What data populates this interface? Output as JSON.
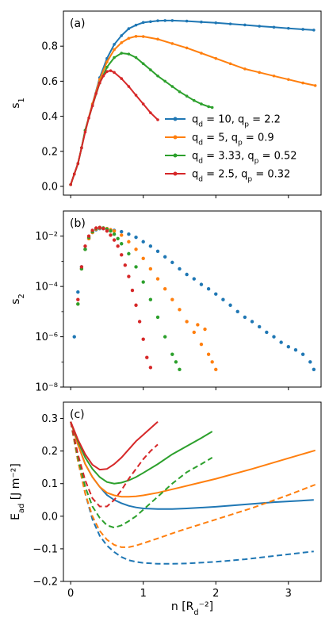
{
  "chart_data": [
    {
      "type": "line",
      "panel_label": "(a)",
      "ylabel": "s_1",
      "xlim": [
        -0.1,
        3.45
      ],
      "ylim": [
        -0.05,
        1.0
      ],
      "yticks": [
        {
          "value": 0.0,
          "label": "0.0"
        },
        {
          "value": 0.2,
          "label": "0.2"
        },
        {
          "value": 0.4,
          "label": "0.4"
        },
        {
          "value": 0.6,
          "label": "0.6"
        },
        {
          "value": 0.8,
          "label": "0.8"
        }
      ],
      "legend_position": "lower-right",
      "series": [
        {
          "name": "q_d = 10,  q_p = 2.2",
          "color": "#1f77b4",
          "marker": "dot",
          "x": [
            0.0,
            0.05,
            0.1,
            0.15,
            0.2,
            0.3,
            0.4,
            0.5,
            0.6,
            0.7,
            0.8,
            0.9,
            1.0,
            1.1,
            1.2,
            1.3,
            1.4,
            1.6,
            1.8,
            2.0,
            2.2,
            2.4,
            2.6,
            2.8,
            3.0,
            3.2,
            3.35
          ],
          "y": [
            0.01,
            0.07,
            0.13,
            0.22,
            0.32,
            0.47,
            0.62,
            0.73,
            0.81,
            0.86,
            0.9,
            0.92,
            0.935,
            0.94,
            0.945,
            0.946,
            0.946,
            0.943,
            0.938,
            0.933,
            0.927,
            0.921,
            0.914,
            0.908,
            0.902,
            0.896,
            0.892
          ]
        },
        {
          "name": "q_d = 5,  q_p = 0.9",
          "color": "#ff7f0e",
          "marker": "dot",
          "x": [
            0.0,
            0.05,
            0.1,
            0.15,
            0.2,
            0.3,
            0.4,
            0.5,
            0.6,
            0.7,
            0.8,
            0.9,
            1.0,
            1.2,
            1.4,
            1.6,
            1.8,
            2.0,
            2.2,
            2.4,
            2.6,
            2.8,
            3.0,
            3.2,
            3.37
          ],
          "y": [
            0.01,
            0.07,
            0.13,
            0.22,
            0.32,
            0.47,
            0.61,
            0.71,
            0.78,
            0.82,
            0.845,
            0.856,
            0.855,
            0.84,
            0.815,
            0.79,
            0.76,
            0.73,
            0.7,
            0.67,
            0.65,
            0.63,
            0.61,
            0.59,
            0.575
          ]
        },
        {
          "name": "q_d = 3.33,  q_p = 0.52",
          "color": "#2ca02c",
          "marker": "dot",
          "x": [
            0.0,
            0.05,
            0.1,
            0.15,
            0.2,
            0.3,
            0.4,
            0.5,
            0.6,
            0.7,
            0.8,
            0.9,
            1.0,
            1.1,
            1.2,
            1.3,
            1.4,
            1.5,
            1.6,
            1.7,
            1.8,
            1.9,
            1.95
          ],
          "y": [
            0.01,
            0.07,
            0.13,
            0.22,
            0.32,
            0.46,
            0.59,
            0.68,
            0.735,
            0.76,
            0.755,
            0.735,
            0.7,
            0.665,
            0.63,
            0.6,
            0.57,
            0.54,
            0.515,
            0.49,
            0.47,
            0.455,
            0.45
          ]
        },
        {
          "name": "q_d = 2.5,  q_p = 0.32",
          "color": "#d62728",
          "marker": "dot",
          "x": [
            0.0,
            0.05,
            0.1,
            0.15,
            0.2,
            0.25,
            0.3,
            0.35,
            0.4,
            0.45,
            0.5,
            0.55,
            0.6,
            0.7,
            0.8,
            0.9,
            1.0,
            1.1,
            1.2
          ],
          "y": [
            0.01,
            0.07,
            0.13,
            0.22,
            0.31,
            0.39,
            0.46,
            0.53,
            0.59,
            0.63,
            0.655,
            0.66,
            0.65,
            0.615,
            0.57,
            0.52,
            0.47,
            0.42,
            0.38
          ]
        }
      ]
    },
    {
      "type": "scatter",
      "panel_label": "(b)",
      "ylabel": "s_2",
      "yscale": "log",
      "xlim": [
        -0.1,
        3.45
      ],
      "ylim": [
        1e-08,
        0.1
      ],
      "yticks": [
        {
          "value": 1e-08,
          "label": "10⁻⁸"
        },
        {
          "value": 1e-06,
          "label": "10⁻⁶"
        },
        {
          "value": 0.0001,
          "label": "10⁻⁴"
        },
        {
          "value": 0.01,
          "label": "10⁻²"
        }
      ],
      "series": [
        {
          "name": "q_d = 10,  q_p = 2.2",
          "color": "#1f77b4",
          "x": [
            0.05,
            0.1,
            0.15,
            0.2,
            0.25,
            0.3,
            0.35,
            0.4,
            0.45,
            0.5,
            0.6,
            0.7,
            0.8,
            0.9,
            1.0,
            1.1,
            1.2,
            1.3,
            1.4,
            1.5,
            1.6,
            1.7,
            1.8,
            1.9,
            2.0,
            2.1,
            2.2,
            2.3,
            2.4,
            2.5,
            2.6,
            2.7,
            2.8,
            2.9,
            3.0,
            3.1,
            3.2,
            3.3,
            3.35
          ],
          "y": [
            1e-06,
            6e-05,
            0.0006,
            0.003,
            0.008,
            0.014,
            0.018,
            0.02,
            0.02,
            0.019,
            0.017,
            0.015,
            0.012,
            0.009,
            0.006,
            0.004,
            0.0025,
            0.0015,
            0.0009,
            0.0005,
            0.0003,
            0.0002,
            0.00012,
            8e-05,
            5e-05,
            3e-05,
            1.8e-05,
            1e-05,
            6e-06,
            4e-06,
            2.5e-06,
            1.5e-06,
            1e-06,
            6e-07,
            4e-07,
            3e-07,
            2e-07,
            1e-07,
            5e-08
          ]
        },
        {
          "name": "q_d = 5,  q_p = 0.9",
          "color": "#ff7f0e",
          "x": [
            0.1,
            0.15,
            0.2,
            0.25,
            0.3,
            0.35,
            0.4,
            0.45,
            0.5,
            0.55,
            0.6,
            0.7,
            0.8,
            0.9,
            1.0,
            1.1,
            1.2,
            1.3,
            1.4,
            1.5,
            1.6,
            1.7,
            1.75,
            1.8,
            1.85,
            1.9,
            1.95,
            2.0
          ],
          "y": [
            2e-05,
            0.0005,
            0.003,
            0.008,
            0.014,
            0.019,
            0.021,
            0.021,
            0.02,
            0.018,
            0.016,
            0.011,
            0.006,
            0.003,
            0.0013,
            0.0005,
            0.0002,
            8e-05,
            3e-05,
            1.2e-05,
            4e-06,
            1.5e-06,
            3e-06,
            5e-07,
            2e-06,
            2e-07,
            1e-07,
            5e-08
          ]
        },
        {
          "name": "q_d = 3.33,  q_p = 0.52",
          "color": "#2ca02c",
          "x": [
            0.1,
            0.15,
            0.2,
            0.25,
            0.3,
            0.35,
            0.4,
            0.45,
            0.5,
            0.55,
            0.6,
            0.65,
            0.7,
            0.8,
            0.9,
            1.0,
            1.1,
            1.2,
            1.3,
            1.4,
            1.45,
            1.5
          ],
          "y": [
            2e-05,
            0.0005,
            0.003,
            0.009,
            0.015,
            0.02,
            0.022,
            0.021,
            0.019,
            0.016,
            0.012,
            0.008,
            0.005,
            0.002,
            0.0006,
            0.00015,
            3e-05,
            6e-06,
            1e-06,
            2e-07,
            1e-07,
            5e-08
          ]
        },
        {
          "name": "q_d = 2.5,  q_p = 0.32",
          "color": "#d62728",
          "x": [
            0.1,
            0.15,
            0.2,
            0.25,
            0.3,
            0.35,
            0.4,
            0.45,
            0.5,
            0.55,
            0.6,
            0.65,
            0.7,
            0.75,
            0.8,
            0.85,
            0.9,
            0.95,
            1.0,
            1.05,
            1.1
          ],
          "y": [
            3e-05,
            0.0006,
            0.004,
            0.01,
            0.017,
            0.021,
            0.022,
            0.02,
            0.016,
            0.011,
            0.007,
            0.004,
            0.0018,
            0.0007,
            0.00025,
            7e-05,
            1.8e-05,
            4e-06,
            8e-07,
            1.5e-07,
            6e-08
          ]
        }
      ]
    },
    {
      "type": "line",
      "panel_label": "(c)",
      "ylabel": "E_ad [J m⁻²]",
      "xlabel": "n [R_d⁻²]",
      "xlim": [
        -0.1,
        3.45
      ],
      "ylim": [
        -0.2,
        0.35
      ],
      "xticks": [
        {
          "value": 0,
          "label": "0"
        },
        {
          "value": 1,
          "label": "1"
        },
        {
          "value": 2,
          "label": "2"
        },
        {
          "value": 3,
          "label": "3"
        }
      ],
      "yticks": [
        {
          "value": -0.2,
          "label": "−0.2"
        },
        {
          "value": -0.1,
          "label": "−0.1"
        },
        {
          "value": 0.0,
          "label": "0.0"
        },
        {
          "value": 0.1,
          "label": "0.1"
        },
        {
          "value": 0.2,
          "label": "0.2"
        },
        {
          "value": 0.3,
          "label": "0.3"
        }
      ],
      "series": [
        {
          "name": "q_d = 10,  q_p = 2.2",
          "color": "#1f77b4",
          "dash": "solid",
          "x": [
            0.0,
            0.1,
            0.2,
            0.3,
            0.4,
            0.5,
            0.6,
            0.7,
            0.8,
            0.9,
            1.0,
            1.2,
            1.4,
            1.6,
            2.0,
            2.4,
            2.8,
            3.35
          ],
          "y": [
            0.29,
            0.22,
            0.16,
            0.12,
            0.09,
            0.065,
            0.05,
            0.04,
            0.032,
            0.027,
            0.024,
            0.022,
            0.022,
            0.024,
            0.029,
            0.036,
            0.043,
            0.05
          ]
        },
        {
          "name": "q_d = 10,  q_p = 2.2",
          "color": "#1f77b4",
          "dash": "dashed",
          "x": [
            0.0,
            0.1,
            0.2,
            0.3,
            0.4,
            0.5,
            0.6,
            0.7,
            0.8,
            0.9,
            1.0,
            1.2,
            1.4,
            1.6,
            2.0,
            2.4,
            2.8,
            3.35
          ],
          "y": [
            0.29,
            0.17,
            0.07,
            -0.01,
            -0.06,
            -0.09,
            -0.11,
            -0.125,
            -0.135,
            -0.14,
            -0.143,
            -0.146,
            -0.146,
            -0.145,
            -0.14,
            -0.132,
            -0.122,
            -0.108
          ]
        },
        {
          "name": "q_d = 5,  q_p = 0.9",
          "color": "#ff7f0e",
          "dash": "solid",
          "x": [
            0.0,
            0.1,
            0.2,
            0.3,
            0.4,
            0.5,
            0.6,
            0.7,
            0.8,
            0.9,
            1.0,
            1.2,
            1.5,
            2.0,
            2.5,
            3.0,
            3.37
          ],
          "y": [
            0.29,
            0.22,
            0.16,
            0.12,
            0.09,
            0.072,
            0.064,
            0.06,
            0.06,
            0.061,
            0.064,
            0.072,
            0.088,
            0.115,
            0.145,
            0.178,
            0.202
          ]
        },
        {
          "name": "q_d = 5,  q_p = 0.9",
          "color": "#ff7f0e",
          "dash": "dashed",
          "x": [
            0.0,
            0.1,
            0.2,
            0.3,
            0.4,
            0.5,
            0.6,
            0.7,
            0.8,
            0.9,
            1.0,
            1.2,
            1.5,
            2.0,
            2.5,
            3.0,
            3.37
          ],
          "y": [
            0.29,
            0.17,
            0.07,
            0.0,
            -0.045,
            -0.072,
            -0.088,
            -0.095,
            -0.095,
            -0.09,
            -0.083,
            -0.068,
            -0.045,
            -0.01,
            0.025,
            0.065,
            0.097
          ]
        },
        {
          "name": "q_d = 3.33,  q_p = 0.52",
          "color": "#2ca02c",
          "dash": "solid",
          "x": [
            0.0,
            0.1,
            0.2,
            0.3,
            0.4,
            0.5,
            0.6,
            0.7,
            0.8,
            0.9,
            1.0,
            1.2,
            1.4,
            1.6,
            1.8,
            1.95
          ],
          "y": [
            0.29,
            0.23,
            0.18,
            0.145,
            0.12,
            0.105,
            0.1,
            0.103,
            0.11,
            0.12,
            0.133,
            0.16,
            0.19,
            0.215,
            0.24,
            0.26
          ]
        },
        {
          "name": "q_d = 3.33,  q_p = 0.52",
          "color": "#2ca02c",
          "dash": "dashed",
          "x": [
            0.0,
            0.1,
            0.2,
            0.3,
            0.4,
            0.5,
            0.6,
            0.7,
            0.8,
            0.9,
            1.0,
            1.2,
            1.4,
            1.6,
            1.8,
            1.95
          ],
          "y": [
            0.29,
            0.18,
            0.09,
            0.03,
            -0.005,
            -0.028,
            -0.035,
            -0.028,
            -0.015,
            0.0,
            0.02,
            0.06,
            0.1,
            0.135,
            0.16,
            0.18
          ]
        },
        {
          "name": "q_d = 2.5,  q_p = 0.32",
          "color": "#d62728",
          "dash": "solid",
          "x": [
            0.0,
            0.1,
            0.2,
            0.3,
            0.4,
            0.5,
            0.6,
            0.7,
            0.8,
            0.9,
            1.0,
            1.1,
            1.2
          ],
          "y": [
            0.29,
            0.235,
            0.19,
            0.158,
            0.143,
            0.145,
            0.16,
            0.18,
            0.205,
            0.23,
            0.25,
            0.27,
            0.29
          ]
        },
        {
          "name": "q_d = 2.5,  q_p = 0.32",
          "color": "#d62728",
          "dash": "dashed",
          "x": [
            0.0,
            0.1,
            0.2,
            0.3,
            0.4,
            0.5,
            0.6,
            0.7,
            0.8,
            0.9,
            1.0,
            1.1,
            1.2
          ],
          "y": [
            0.29,
            0.19,
            0.11,
            0.055,
            0.03,
            0.03,
            0.05,
            0.08,
            0.115,
            0.145,
            0.175,
            0.2,
            0.22
          ]
        }
      ]
    }
  ]
}
